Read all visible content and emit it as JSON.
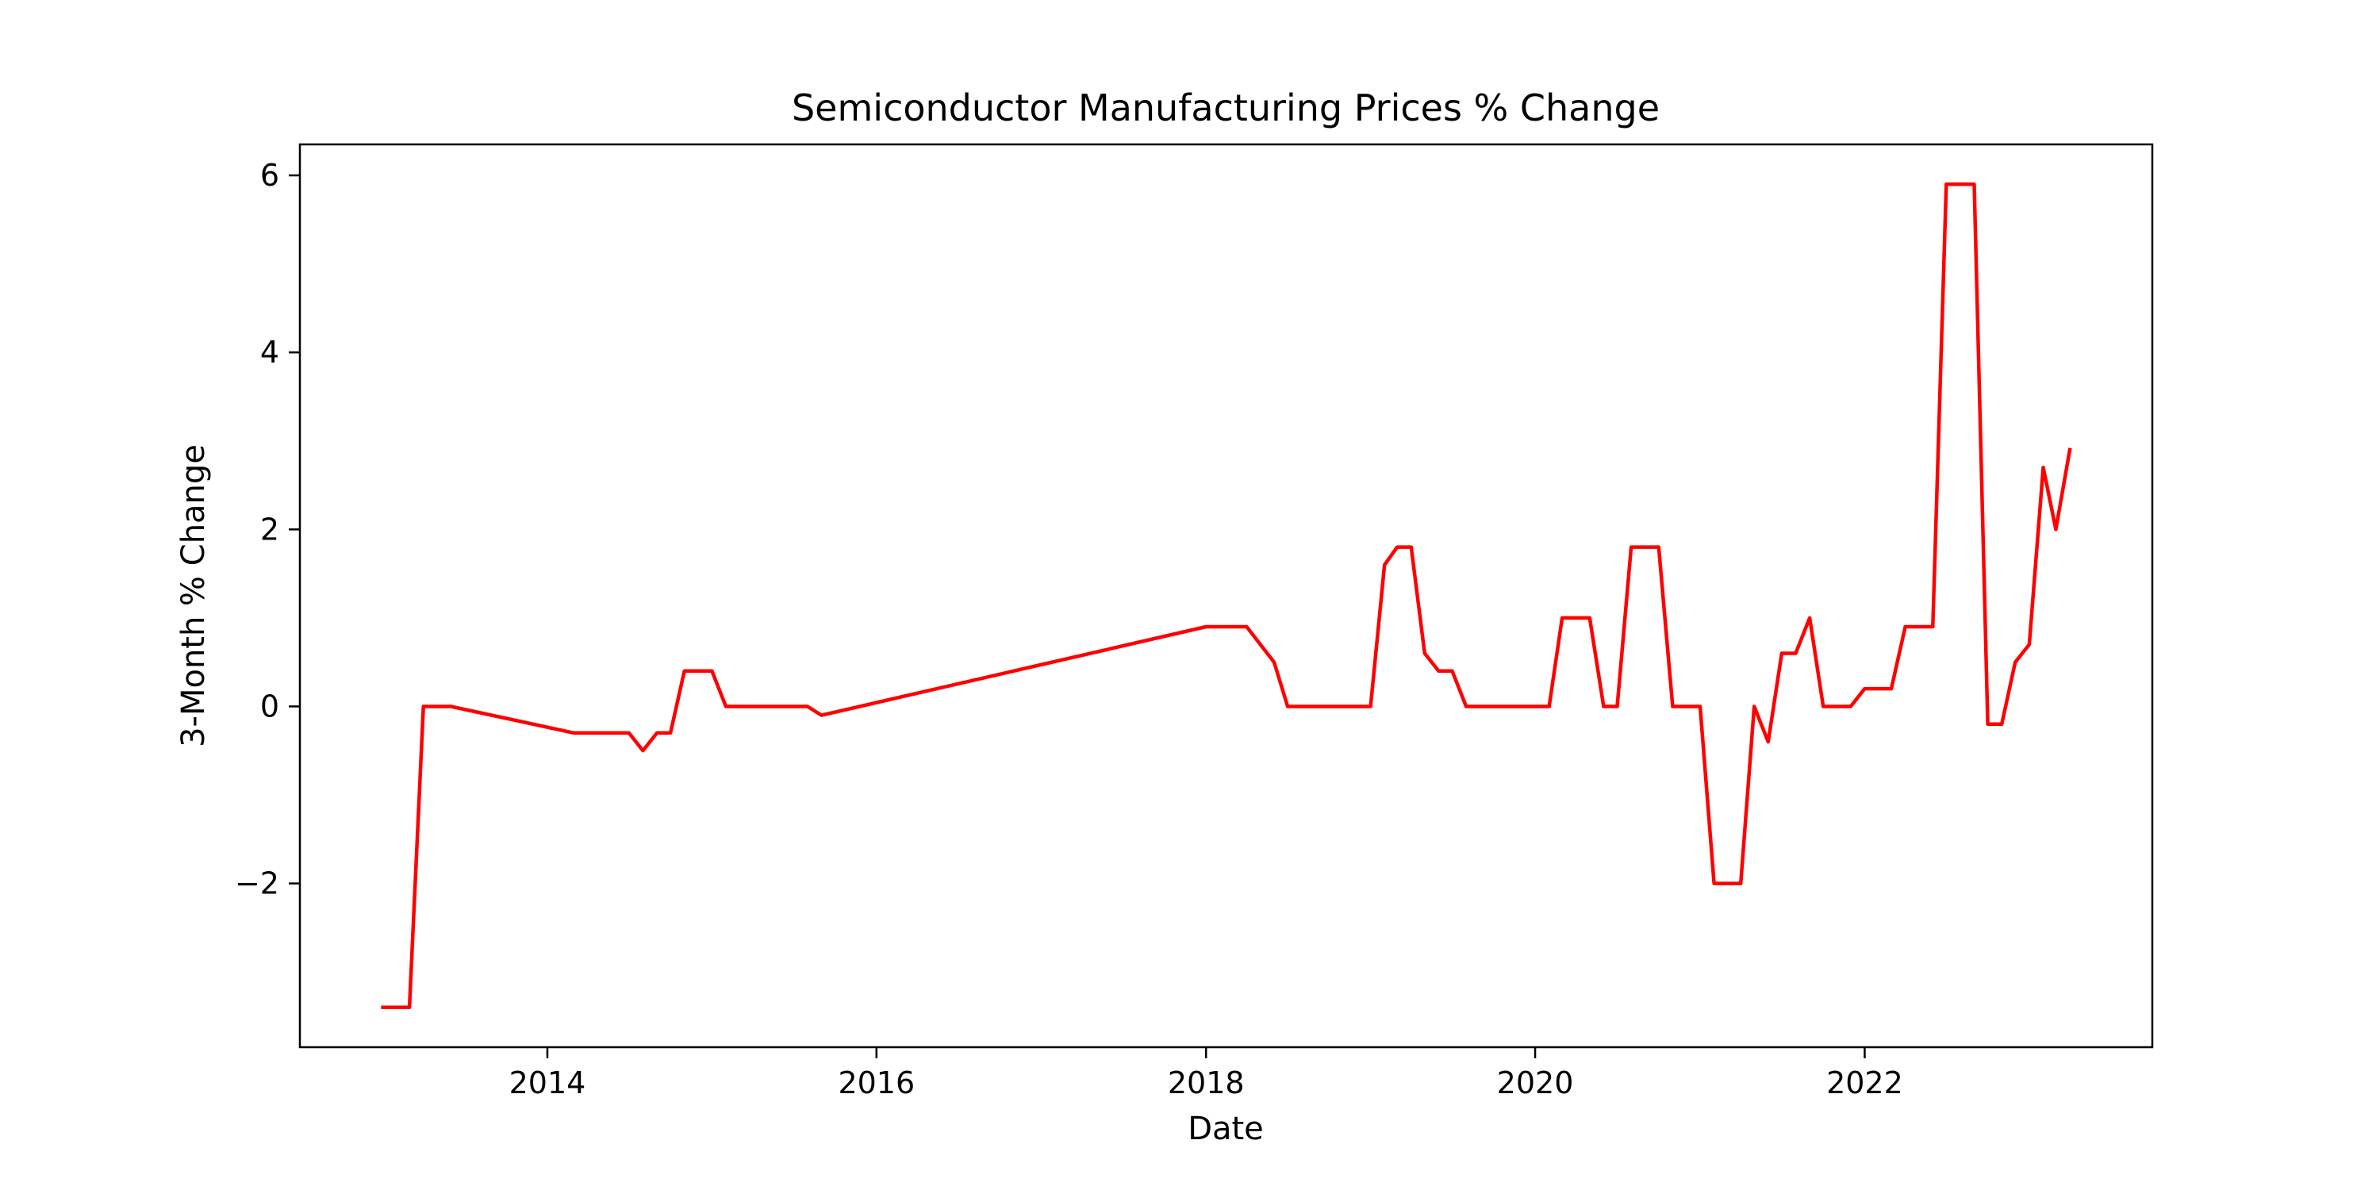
{
  "chart_data": {
    "type": "line",
    "title": "Semiconductor Manufacturing Prices % Change",
    "xlabel": "Date",
    "ylabel": "3-Month % Change",
    "xlim": [
      "2012-07-01",
      "2023-10-01"
    ],
    "ylim": [
      -3.85,
      6.35
    ],
    "x_ticks": [
      {
        "value": "2014-01-01",
        "label": "2014"
      },
      {
        "value": "2016-01-01",
        "label": "2016"
      },
      {
        "value": "2018-01-01",
        "label": "2018"
      },
      {
        "value": "2020-01-01",
        "label": "2020"
      },
      {
        "value": "2022-01-01",
        "label": "2022"
      }
    ],
    "y_ticks": [
      {
        "value": -2,
        "label": "−2"
      },
      {
        "value": 0,
        "label": "0"
      },
      {
        "value": 2,
        "label": "2"
      },
      {
        "value": 4,
        "label": "4"
      },
      {
        "value": 6,
        "label": "6"
      }
    ],
    "grid": false,
    "series": [
      {
        "color": "#ff0000",
        "points": [
          {
            "x": "2013-01-01",
            "y": -3.4
          },
          {
            "x": "2013-03-01",
            "y": -3.4
          },
          {
            "x": "2013-04-01",
            "y": 0.0
          },
          {
            "x": "2013-06-01",
            "y": 0.0
          },
          {
            "x": "2014-03-01",
            "y": -0.3
          },
          {
            "x": "2014-07-01",
            "y": -0.3
          },
          {
            "x": "2014-08-01",
            "y": -0.5
          },
          {
            "x": "2014-09-01",
            "y": -0.3
          },
          {
            "x": "2014-10-01",
            "y": -0.3
          },
          {
            "x": "2014-11-01",
            "y": 0.4
          },
          {
            "x": "2015-01-01",
            "y": 0.4
          },
          {
            "x": "2015-02-01",
            "y": 0.0
          },
          {
            "x": "2015-08-01",
            "y": 0.0
          },
          {
            "x": "2015-09-01",
            "y": -0.1
          },
          {
            "x": "2018-01-01",
            "y": 0.9
          },
          {
            "x": "2018-04-01",
            "y": 0.9
          },
          {
            "x": "2018-06-01",
            "y": 0.5
          },
          {
            "x": "2018-07-01",
            "y": 0.0
          },
          {
            "x": "2019-01-01",
            "y": 0.0
          },
          {
            "x": "2019-02-01",
            "y": 1.6
          },
          {
            "x": "2019-03-01",
            "y": 1.8
          },
          {
            "x": "2019-04-01",
            "y": 1.8
          },
          {
            "x": "2019-05-01",
            "y": 0.6
          },
          {
            "x": "2019-06-01",
            "y": 0.4
          },
          {
            "x": "2019-07-01",
            "y": 0.4
          },
          {
            "x": "2019-08-01",
            "y": 0.0
          },
          {
            "x": "2020-02-01",
            "y": 0.0
          },
          {
            "x": "2020-03-01",
            "y": 1.0
          },
          {
            "x": "2020-05-01",
            "y": 1.0
          },
          {
            "x": "2020-06-01",
            "y": 0.0
          },
          {
            "x": "2020-07-01",
            "y": 0.0
          },
          {
            "x": "2020-08-01",
            "y": 1.8
          },
          {
            "x": "2020-10-01",
            "y": 1.8
          },
          {
            "x": "2020-11-01",
            "y": 0.0
          },
          {
            "x": "2021-01-01",
            "y": 0.0
          },
          {
            "x": "2021-02-01",
            "y": -2.0
          },
          {
            "x": "2021-04-01",
            "y": -2.0
          },
          {
            "x": "2021-05-01",
            "y": 0.0
          },
          {
            "x": "2021-06-01",
            "y": -0.4
          },
          {
            "x": "2021-07-01",
            "y": 0.6
          },
          {
            "x": "2021-08-01",
            "y": 0.6
          },
          {
            "x": "2021-09-01",
            "y": 1.0
          },
          {
            "x": "2021-10-01",
            "y": 0.0
          },
          {
            "x": "2021-12-01",
            "y": 0.0
          },
          {
            "x": "2022-01-01",
            "y": 0.2
          },
          {
            "x": "2022-03-01",
            "y": 0.2
          },
          {
            "x": "2022-04-01",
            "y": 0.9
          },
          {
            "x": "2022-06-01",
            "y": 0.9
          },
          {
            "x": "2022-07-01",
            "y": 5.9
          },
          {
            "x": "2022-09-01",
            "y": 5.9
          },
          {
            "x": "2022-10-01",
            "y": -0.2
          },
          {
            "x": "2022-11-01",
            "y": -0.2
          },
          {
            "x": "2022-12-01",
            "y": 0.5
          },
          {
            "x": "2023-01-01",
            "y": 0.7
          },
          {
            "x": "2023-02-01",
            "y": 2.7
          },
          {
            "x": "2023-03-01",
            "y": 2.0
          },
          {
            "x": "2023-04-01",
            "y": 2.9
          }
        ]
      }
    ]
  }
}
